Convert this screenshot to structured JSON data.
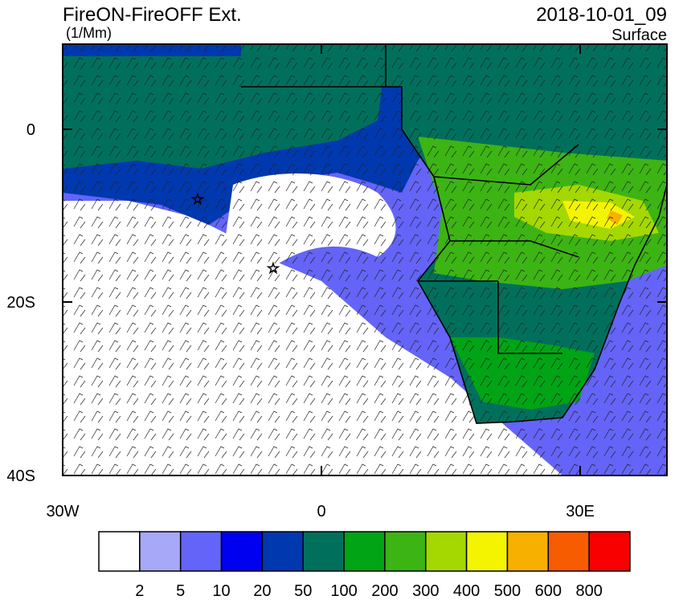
{
  "header": {
    "title": "FireON-FireOFF Ext.",
    "units": "(1/Mm)",
    "date": "2018-10-01_09",
    "level": "Surface"
  },
  "axes": {
    "lat_labels": [
      "0",
      "20S",
      "40S"
    ],
    "lon_labels": [
      "30W",
      "0",
      "30E"
    ]
  },
  "colorbar": {
    "colors": [
      "#ffffff",
      "#a8a8f8",
      "#6464f8",
      "#0000f0",
      "#0038b0",
      "#00705c",
      "#00a414",
      "#3cb414",
      "#a4d800",
      "#f4f400",
      "#f8b000",
      "#f85c00",
      "#f80000"
    ],
    "labels": [
      2,
      5,
      10,
      20,
      50,
      100,
      200,
      300,
      400,
      500,
      600,
      800
    ]
  }
}
